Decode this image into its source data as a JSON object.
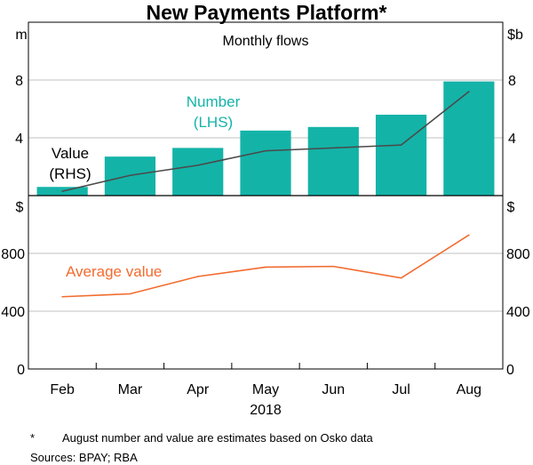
{
  "chart_data": [
    {
      "type": "bar",
      "title": "New Payments Platform*",
      "subtitle": "Monthly flows",
      "categories": [
        "Feb",
        "Mar",
        "Apr",
        "May",
        "Jun",
        "Jul",
        "Aug"
      ],
      "x_group_label": "2018",
      "left_unit": "m",
      "right_unit": "$b",
      "ylim_left": [
        0,
        12
      ],
      "ylim_right": [
        0,
        12
      ],
      "yticks": [
        4,
        8
      ],
      "grid": true,
      "series": [
        {
          "name": "Number (LHS)",
          "label_lines": [
            "Number",
            "(LHS)"
          ],
          "type": "bar",
          "axis": "left",
          "color": "#14b3a8",
          "values": [
            0.6,
            2.7,
            3.3,
            4.5,
            4.75,
            5.6,
            7.9
          ]
        },
        {
          "name": "Value (RHS)",
          "label_lines": [
            "Value",
            "(RHS)"
          ],
          "type": "line",
          "axis": "right",
          "color": "#4a4a4a",
          "values": [
            0.3,
            1.4,
            2.1,
            3.1,
            3.3,
            3.5,
            7.2
          ]
        }
      ]
    },
    {
      "type": "line",
      "categories": [
        "Feb",
        "Mar",
        "Apr",
        "May",
        "Jun",
        "Jul",
        "Aug"
      ],
      "left_unit": "$",
      "right_unit": "$",
      "ylim": [
        0,
        1200
      ],
      "yticks": [
        0,
        400,
        800
      ],
      "grid": true,
      "series": [
        {
          "name": "Average value",
          "color": "#f26b2f",
          "values": [
            500,
            520,
            640,
            705,
            710,
            630,
            927
          ]
        }
      ]
    }
  ],
  "footnotes": {
    "star": "*",
    "note": "August number and value are estimates based on Osko data",
    "sources": "Sources: BPAY; RBA"
  }
}
